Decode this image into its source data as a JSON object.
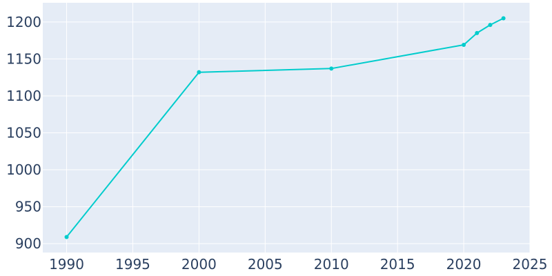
{
  "chart_data": {
    "type": "line",
    "title": "",
    "xlabel": "",
    "ylabel": "",
    "x": [
      1990,
      2000,
      2010,
      2020,
      2021,
      2022,
      2023
    ],
    "series": [
      {
        "values": [
          909,
          1132,
          1137,
          1169,
          1185,
          1196,
          1205
        ]
      }
    ],
    "xlim": [
      1988.2,
      2025
    ],
    "ylim": [
      888,
      1226
    ],
    "x_ticks": [
      1990,
      1995,
      2000,
      2005,
      2010,
      2015,
      2020,
      2025
    ],
    "y_ticks": [
      900,
      950,
      1000,
      1050,
      1100,
      1150,
      1200
    ],
    "grid": true,
    "legend": "none",
    "colors": {
      "line": "#00cccc",
      "plot_bg": "#e5ecf6",
      "grid": "#ffffff",
      "tick_text": "#2a3f5f"
    }
  }
}
